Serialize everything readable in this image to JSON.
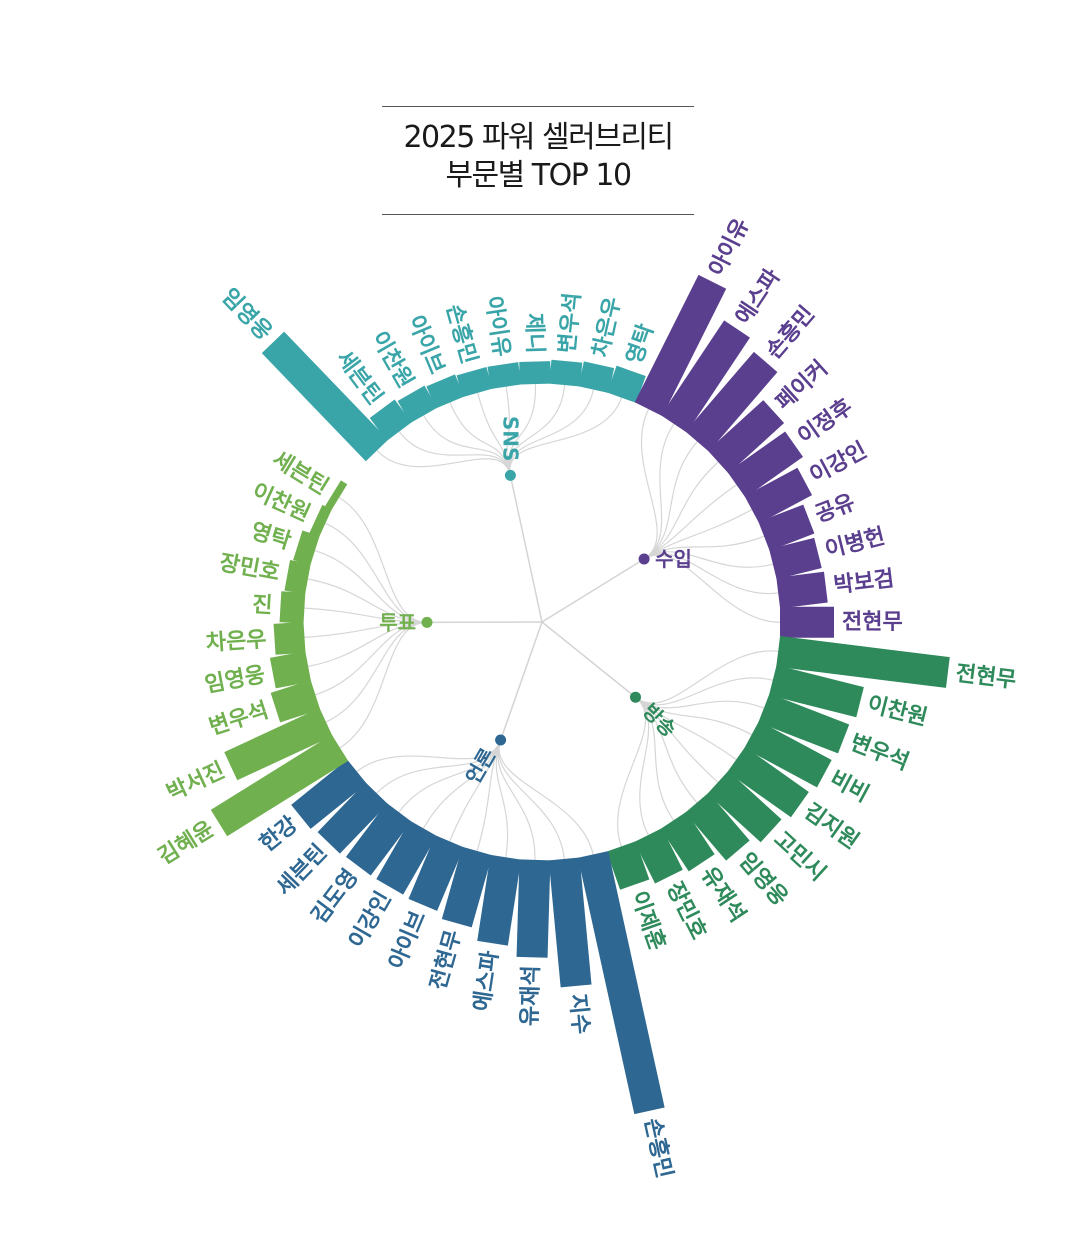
{
  "title": {
    "line1": "2025 파워 셀러브리티",
    "line2": "부문별 TOP 10"
  },
  "chart_data": {
    "type": "radial-bar",
    "title": "2025 파워 셀러브리티 부문별 TOP 10",
    "value_unit": "relative (unlabeled)",
    "groups": [
      {
        "name": "SNS",
        "color": "#3aa5a8",
        "items": [
          {
            "label": "임영웅",
            "value": 100
          },
          {
            "label": "세븐틴",
            "value": 19
          },
          {
            "label": "이찬원",
            "value": 17
          },
          {
            "label": "아이브",
            "value": 16
          },
          {
            "label": "손흥민",
            "value": 15
          },
          {
            "label": "아이유",
            "value": 15
          },
          {
            "label": "제니",
            "value": 15
          },
          {
            "label": "변우석",
            "value": 16
          },
          {
            "label": "차은우",
            "value": 17
          },
          {
            "label": "영탁",
            "value": 19
          }
        ]
      },
      {
        "name": "수입",
        "color": "#5b3f8f",
        "items": [
          {
            "label": "아이유",
            "value": 95
          },
          {
            "label": "에스파",
            "value": 76
          },
          {
            "label": "손흥민",
            "value": 70
          },
          {
            "label": "페이커",
            "value": 50
          },
          {
            "label": "이정후",
            "value": 47
          },
          {
            "label": "이강인",
            "value": 40
          },
          {
            "label": "공유",
            "value": 32
          },
          {
            "label": "이병헌",
            "value": 31
          },
          {
            "label": "박보검",
            "value": 32
          },
          {
            "label": "전현무",
            "value": 36
          }
        ]
      },
      {
        "name": "방송",
        "color": "#2e8a5a",
        "items": [
          {
            "label": "전현무",
            "value": 114
          },
          {
            "label": "이찬원",
            "value": 60
          },
          {
            "label": "변우석",
            "value": 57
          },
          {
            "label": "비비",
            "value": 55
          },
          {
            "label": "김지원",
            "value": 52
          },
          {
            "label": "고민시",
            "value": 48
          },
          {
            "label": "임영웅",
            "value": 42
          },
          {
            "label": "유재석",
            "value": 34
          },
          {
            "label": "장민호",
            "value": 31
          },
          {
            "label": "이제훈",
            "value": 27
          }
        ]
      },
      {
        "name": "언론",
        "color": "#2e6792",
        "items": [
          {
            "label": "손흥민",
            "value": 175
          },
          {
            "label": "지수",
            "value": 85
          },
          {
            "label": "유재석",
            "value": 65
          },
          {
            "label": "에스파",
            "value": 58
          },
          {
            "label": "전현무",
            "value": 50
          },
          {
            "label": "아이브",
            "value": 46
          },
          {
            "label": "이강인",
            "value": 45
          },
          {
            "label": "김도영",
            "value": 45
          },
          {
            "label": "세븐틴",
            "value": 46
          },
          {
            "label": "한강",
            "value": 48
          }
        ]
      },
      {
        "name": "투표",
        "color": "#71b04f",
        "items": [
          {
            "label": "김혜윤",
            "value": 95
          },
          {
            "label": "박서진",
            "value": 70
          },
          {
            "label": "변우석",
            "value": 28
          },
          {
            "label": "임영웅",
            "value": 24
          },
          {
            "label": "차은우",
            "value": 20
          },
          {
            "label": "진",
            "value": 16
          },
          {
            "label": "장민호",
            "value": 14
          },
          {
            "label": "영탁",
            "value": 12
          },
          {
            "label": "이찬원",
            "value": 7
          },
          {
            "label": "세븐틴",
            "value": 5
          }
        ]
      }
    ]
  }
}
